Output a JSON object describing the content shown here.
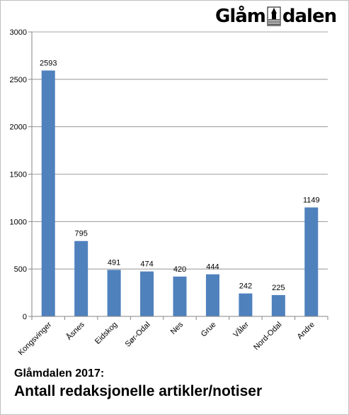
{
  "logo": {
    "part1": "Glåm",
    "part2": "dalen",
    "icon": "church-tower-emblem-icon"
  },
  "caption": {
    "line1": "Glåmdalen 2017:",
    "line2": "Antall redaksjonelle artikler/notiser"
  },
  "chart_data": {
    "type": "bar",
    "categories": [
      "Kongsvinger",
      "Åsnes",
      "Eidskog",
      "Sør-Odal",
      "Nes",
      "Grue",
      "Våler",
      "Nord-Odal",
      "Andre"
    ],
    "values": [
      2593,
      795,
      491,
      474,
      420,
      444,
      242,
      225,
      1149
    ],
    "data_labels": [
      "2593",
      "795",
      "491",
      "474",
      "420",
      "444",
      "242",
      "225",
      "1149"
    ],
    "yticks": [
      0,
      500,
      1000,
      1500,
      2000,
      2500,
      3000
    ],
    "ytick_labels": [
      "0",
      "500",
      "1000",
      "1500",
      "2000",
      "2500",
      "3000"
    ],
    "ylim": [
      0,
      3000
    ],
    "title": "Antall redaksjonelle artikler/notiser",
    "xlabel": "",
    "ylabel": "",
    "grid": true,
    "legend": "none",
    "bar_color": "#4f81bd",
    "grid_color": "#868686"
  }
}
